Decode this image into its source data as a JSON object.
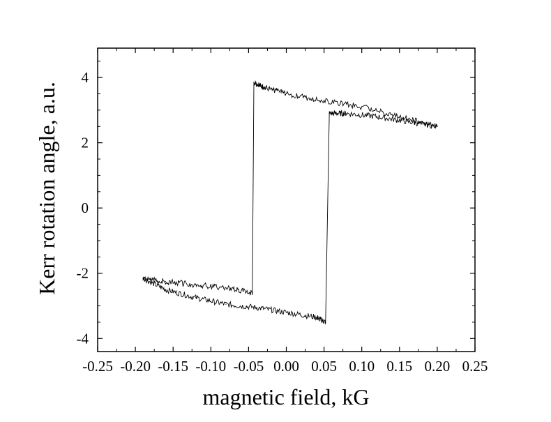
{
  "chart_data": {
    "type": "line",
    "title": "",
    "xlabel": "magnetic field, kG",
    "ylabel": "Kerr rotation angle, a.u.",
    "xlim": [
      -0.25,
      0.25
    ],
    "ylim": [
      -4.4,
      4.9
    ],
    "x_ticks": [
      -0.25,
      -0.2,
      -0.15,
      -0.1,
      -0.05,
      0.0,
      0.05,
      0.1,
      0.15,
      0.2,
      0.25
    ],
    "x_tick_labels": [
      "-0.25",
      "-0.20",
      "-0.15",
      "-0.10",
      "-0.05",
      "0.00",
      "0.05",
      "0.10",
      "0.15",
      "0.20",
      "0.25"
    ],
    "y_ticks": [
      -4,
      -2,
      0,
      2,
      4
    ],
    "y_tick_labels": [
      "-4",
      "-2",
      "0",
      "2",
      "4"
    ],
    "grid": false,
    "legend": "none",
    "line_color": "#000000",
    "series": [
      {
        "x": [
          0.2,
          0.15,
          0.1,
          0.05,
          0.0,
          -0.03,
          -0.043,
          -0.045,
          -0.08,
          -0.12,
          -0.16,
          -0.19,
          -0.16,
          -0.12,
          -0.08,
          -0.04,
          0.0,
          0.04,
          0.052,
          0.057,
          0.08,
          0.12,
          0.16,
          0.2
        ],
        "y": [
          2.5,
          2.8,
          3.1,
          3.3,
          3.5,
          3.7,
          3.85,
          -2.6,
          -2.45,
          -2.35,
          -2.25,
          -2.15,
          -2.5,
          -2.75,
          -2.95,
          -3.05,
          -3.2,
          -3.35,
          -3.5,
          2.9,
          2.9,
          2.8,
          2.65,
          2.5
        ]
      }
    ]
  }
}
